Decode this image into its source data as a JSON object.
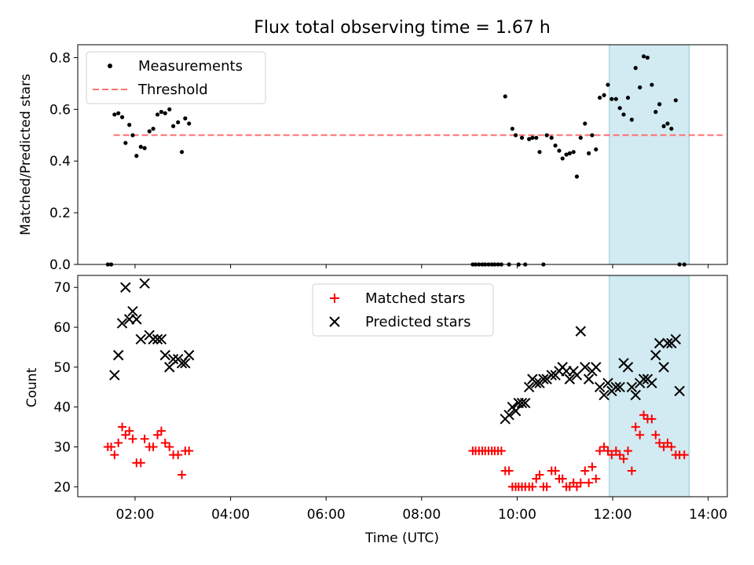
{
  "chart_data": {
    "title": "Flux total observing time = 1.67 h",
    "xlabel": "Time (UTC)",
    "x_unit": "hours UTC",
    "xlim": [
      0.8,
      14.4
    ],
    "xticks": [
      {
        "value": 2,
        "label": "02:00"
      },
      {
        "value": 4,
        "label": "04:00"
      },
      {
        "value": 6,
        "label": "06:00"
      },
      {
        "value": 8,
        "label": "08:00"
      },
      {
        "value": 10,
        "label": "10:00"
      },
      {
        "value": 12,
        "label": "12:00"
      },
      {
        "value": 14,
        "label": "14:00"
      }
    ],
    "highlight_span": {
      "x0": 11.93,
      "x1": 13.6,
      "color": "#add8e6"
    },
    "top": {
      "type": "scatter",
      "ylabel": "Matched/Predicted stars",
      "ylim": [
        0,
        0.85
      ],
      "yticks": [
        "0.0",
        "0.2",
        "0.4",
        "0.6",
        "0.8"
      ],
      "legend_position": "top-left",
      "legend": {
        "measurements": "Measurements",
        "threshold": "Threshold"
      },
      "threshold": 0.5,
      "threshold_range": [
        1.55,
        14.3
      ],
      "threshold_color": "#ff7070",
      "point_color": "#000000",
      "measurements": [
        [
          1.43,
          0
        ],
        [
          1.5,
          0
        ],
        [
          1.57,
          0.58
        ],
        [
          1.65,
          0.585
        ],
        [
          1.73,
          0.57
        ],
        [
          1.8,
          0.47
        ],
        [
          1.88,
          0.54
        ],
        [
          1.95,
          0.5
        ],
        [
          2.03,
          0.42
        ],
        [
          2.12,
          0.455
        ],
        [
          2.2,
          0.45
        ],
        [
          2.3,
          0.515
        ],
        [
          2.38,
          0.525
        ],
        [
          2.47,
          0.58
        ],
        [
          2.55,
          0.59
        ],
        [
          2.63,
          0.585
        ],
        [
          2.72,
          0.6
        ],
        [
          2.8,
          0.535
        ],
        [
          2.9,
          0.55
        ],
        [
          2.98,
          0.435
        ],
        [
          3.05,
          0.565
        ],
        [
          3.13,
          0.545
        ],
        [
          9.07,
          0
        ],
        [
          9.13,
          0
        ],
        [
          9.2,
          0
        ],
        [
          9.27,
          0
        ],
        [
          9.33,
          0
        ],
        [
          9.4,
          0
        ],
        [
          9.47,
          0
        ],
        [
          9.53,
          0
        ],
        [
          9.6,
          0
        ],
        [
          9.67,
          0
        ],
        [
          9.75,
          0.65
        ],
        [
          9.83,
          0
        ],
        [
          9.9,
          0.525
        ],
        [
          9.97,
          0.5
        ],
        [
          10.03,
          0
        ],
        [
          10.1,
          0.49
        ],
        [
          10.17,
          0
        ],
        [
          10.25,
          0.485
        ],
        [
          10.32,
          0.49
        ],
        [
          10.4,
          0.49
        ],
        [
          10.47,
          0.435
        ],
        [
          10.55,
          0
        ],
        [
          10.62,
          0.5
        ],
        [
          10.72,
          0.49
        ],
        [
          10.8,
          0.46
        ],
        [
          10.88,
          0.44
        ],
        [
          10.95,
          0.41
        ],
        [
          11.03,
          0.425
        ],
        [
          11.1,
          0.43
        ],
        [
          11.18,
          0.435
        ],
        [
          11.25,
          0.34
        ],
        [
          11.33,
          0.49
        ],
        [
          11.42,
          0.545
        ],
        [
          11.5,
          0.43
        ],
        [
          11.57,
          0.5
        ],
        [
          11.65,
          0.445
        ],
        [
          11.73,
          0.645
        ],
        [
          11.82,
          0.655
        ],
        [
          11.9,
          0.695
        ],
        [
          11.98,
          0.64
        ],
        [
          12.07,
          0.64
        ],
        [
          12.15,
          0.605
        ],
        [
          12.23,
          0.58
        ],
        [
          12.32,
          0.645
        ],
        [
          12.4,
          0.56
        ],
        [
          12.48,
          0.76
        ],
        [
          12.57,
          0.685
        ],
        [
          12.65,
          0.805
        ],
        [
          12.73,
          0.8
        ],
        [
          12.82,
          0.695
        ],
        [
          12.9,
          0.59
        ],
        [
          12.98,
          0.62
        ],
        [
          13.07,
          0.535
        ],
        [
          13.15,
          0.545
        ],
        [
          13.23,
          0.525
        ],
        [
          13.32,
          0.635
        ],
        [
          13.4,
          0
        ],
        [
          13.5,
          0
        ]
      ]
    },
    "bottom": {
      "type": "scatter",
      "ylabel": "Count",
      "ylim": [
        17.5,
        73
      ],
      "yticks": [
        "20",
        "30",
        "40",
        "50",
        "60",
        "70"
      ],
      "legend_position": "upper-center",
      "series": [
        {
          "name": "Matched stars",
          "marker": "plus",
          "color": "#ff0000",
          "points": [
            [
              1.43,
              30
            ],
            [
              1.5,
              30
            ],
            [
              1.57,
              28
            ],
            [
              1.65,
              31
            ],
            [
              1.73,
              35
            ],
            [
              1.8,
              33
            ],
            [
              1.88,
              34
            ],
            [
              1.95,
              32
            ],
            [
              2.03,
              26
            ],
            [
              2.12,
              26
            ],
            [
              2.2,
              32
            ],
            [
              2.3,
              30
            ],
            [
              2.38,
              30
            ],
            [
              2.47,
              33
            ],
            [
              2.55,
              34
            ],
            [
              2.63,
              31
            ],
            [
              2.72,
              30
            ],
            [
              2.8,
              28
            ],
            [
              2.9,
              28
            ],
            [
              2.98,
              23
            ],
            [
              3.05,
              29
            ],
            [
              3.13,
              29
            ],
            [
              9.07,
              29
            ],
            [
              9.13,
              29
            ],
            [
              9.2,
              29
            ],
            [
              9.27,
              29
            ],
            [
              9.33,
              29
            ],
            [
              9.4,
              29
            ],
            [
              9.47,
              29
            ],
            [
              9.53,
              29
            ],
            [
              9.6,
              29
            ],
            [
              9.67,
              29
            ],
            [
              9.75,
              24
            ],
            [
              9.83,
              24
            ],
            [
              9.9,
              20
            ],
            [
              9.97,
              20
            ],
            [
              10.03,
              20
            ],
            [
              10.1,
              20
            ],
            [
              10.17,
              20
            ],
            [
              10.25,
              20
            ],
            [
              10.32,
              20
            ],
            [
              10.4,
              22
            ],
            [
              10.47,
              23
            ],
            [
              10.55,
              20
            ],
            [
              10.62,
              20
            ],
            [
              10.72,
              24
            ],
            [
              10.8,
              24
            ],
            [
              10.88,
              22
            ],
            [
              10.95,
              22
            ],
            [
              11.03,
              20
            ],
            [
              11.1,
              20
            ],
            [
              11.18,
              21
            ],
            [
              11.25,
              20
            ],
            [
              11.33,
              21
            ],
            [
              11.42,
              24
            ],
            [
              11.5,
              21
            ],
            [
              11.57,
              25
            ],
            [
              11.65,
              22
            ],
            [
              11.73,
              29
            ],
            [
              11.82,
              30
            ],
            [
              11.9,
              29
            ],
            [
              11.98,
              28
            ],
            [
              12.07,
              29
            ],
            [
              12.15,
              28
            ],
            [
              12.23,
              27
            ],
            [
              12.32,
              29
            ],
            [
              12.4,
              24
            ],
            [
              12.48,
              35
            ],
            [
              12.57,
              33
            ],
            [
              12.65,
              38
            ],
            [
              12.73,
              37
            ],
            [
              12.82,
              37
            ],
            [
              12.9,
              33
            ],
            [
              12.98,
              31
            ],
            [
              13.07,
              30
            ],
            [
              13.15,
              31
            ],
            [
              13.23,
              30
            ],
            [
              13.32,
              28
            ],
            [
              13.4,
              28
            ],
            [
              13.5,
              28
            ]
          ]
        },
        {
          "name": "Predicted stars",
          "marker": "x",
          "color": "#000000",
          "points": [
            [
              1.57,
              48
            ],
            [
              1.65,
              53
            ],
            [
              1.73,
              61
            ],
            [
              1.8,
              70
            ],
            [
              1.88,
              62
            ],
            [
              1.95,
              64
            ],
            [
              2.03,
              62
            ],
            [
              2.12,
              57
            ],
            [
              2.2,
              71
            ],
            [
              2.3,
              58
            ],
            [
              2.38,
              57
            ],
            [
              2.47,
              57
            ],
            [
              2.55,
              57
            ],
            [
              2.63,
              53
            ],
            [
              2.72,
              50
            ],
            [
              2.8,
              52
            ],
            [
              2.9,
              52
            ],
            [
              2.98,
              51
            ],
            [
              3.05,
              51
            ],
            [
              3.13,
              53
            ],
            [
              9.75,
              37
            ],
            [
              9.83,
              38
            ],
            [
              9.9,
              40
            ],
            [
              9.97,
              39
            ],
            [
              10.03,
              41
            ],
            [
              10.1,
              41
            ],
            [
              10.17,
              41
            ],
            [
              10.25,
              45
            ],
            [
              10.32,
              47
            ],
            [
              10.4,
              46
            ],
            [
              10.47,
              46
            ],
            [
              10.55,
              47
            ],
            [
              10.62,
              47
            ],
            [
              10.72,
              48
            ],
            [
              10.8,
              48
            ],
            [
              10.88,
              49
            ],
            [
              10.95,
              50
            ],
            [
              11.03,
              49
            ],
            [
              11.1,
              47
            ],
            [
              11.18,
              49
            ],
            [
              11.25,
              48
            ],
            [
              11.33,
              59
            ],
            [
              11.42,
              50
            ],
            [
              11.5,
              47
            ],
            [
              11.57,
              49
            ],
            [
              11.65,
              50
            ],
            [
              11.73,
              45
            ],
            [
              11.82,
              43
            ],
            [
              11.9,
              46
            ],
            [
              11.98,
              44
            ],
            [
              12.07,
              45
            ],
            [
              12.15,
              45
            ],
            [
              12.23,
              51
            ],
            [
              12.32,
              50
            ],
            [
              12.4,
              45
            ],
            [
              12.48,
              43
            ],
            [
              12.57,
              46
            ],
            [
              12.65,
              47
            ],
            [
              12.73,
              47
            ],
            [
              12.82,
              46
            ],
            [
              12.9,
              53
            ],
            [
              12.98,
              56
            ],
            [
              13.07,
              50
            ],
            [
              13.15,
              56
            ],
            [
              13.23,
              56
            ],
            [
              13.32,
              57
            ],
            [
              13.4,
              44
            ]
          ]
        }
      ]
    }
  }
}
